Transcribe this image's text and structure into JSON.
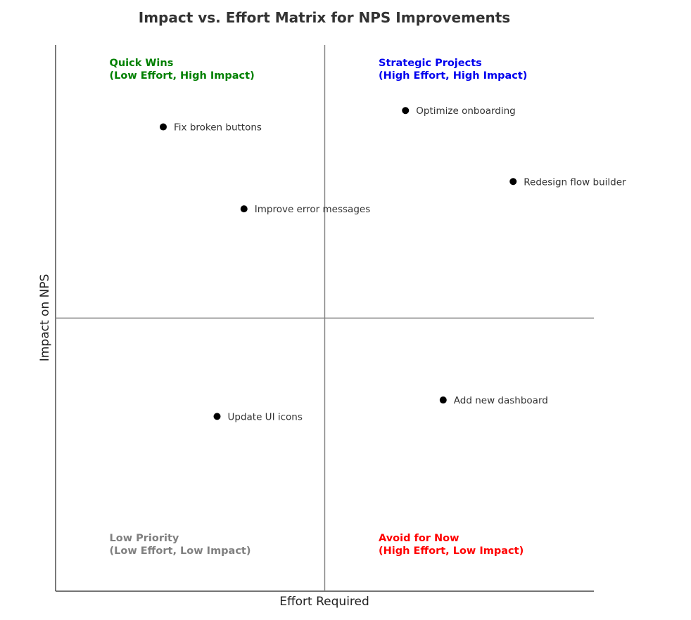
{
  "chart_data": {
    "type": "scatter",
    "title": "Impact vs. Effort Matrix for NPS Improvements",
    "xlabel": "Effort Required",
    "ylabel": "Impact on NPS",
    "xlim": [
      0,
      10
    ],
    "ylim": [
      0,
      10
    ],
    "grid": false,
    "divider_x": 5,
    "divider_y": 5,
    "divider_color": "#808080",
    "point_color": "#000000",
    "points": [
      {
        "label": "Fix broken buttons",
        "x": 2,
        "y": 8.5
      },
      {
        "label": "Optimize onboarding",
        "x": 6.5,
        "y": 8.8
      },
      {
        "label": "Redesign flow builder",
        "x": 8.5,
        "y": 7.5
      },
      {
        "label": "Improve error messages",
        "x": 3.5,
        "y": 7
      },
      {
        "label": "Add new dashboard",
        "x": 7.2,
        "y": 3.5
      },
      {
        "label": "Update UI icons",
        "x": 3,
        "y": 3.2
      }
    ],
    "quadrants": [
      {
        "key": "quick_wins",
        "line1": "Quick Wins",
        "line2": "(Low Effort, High Impact)",
        "color": "#008000",
        "x": 1,
        "y": 9.5
      },
      {
        "key": "strategic",
        "line1": "Strategic Projects",
        "line2": "(High Effort, High Impact)",
        "color": "#0000ee",
        "x": 6,
        "y": 9.5
      },
      {
        "key": "low_priority",
        "line1": "Low Priority",
        "line2": "(Low Effort, Low Impact)",
        "color": "#808080",
        "x": 1,
        "y": 0.8
      },
      {
        "key": "avoid",
        "line1": "Avoid for Now",
        "line2": "(High Effort, Low Impact)",
        "color": "#ff0000",
        "x": 6,
        "y": 0.8
      }
    ]
  }
}
